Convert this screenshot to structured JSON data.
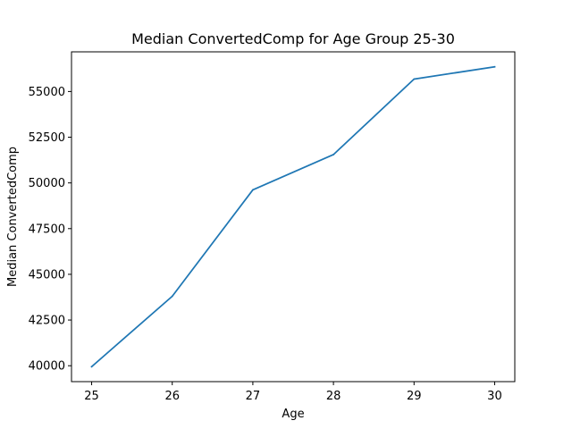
{
  "chart_data": {
    "type": "line",
    "title": "Median ConvertedComp for Age Group 25-30",
    "xlabel": "Age",
    "ylabel": "Median ConvertedComp",
    "x": [
      25,
      26,
      27,
      28,
      29,
      30
    ],
    "series": [
      {
        "values": [
          39950,
          43800,
          49620,
          51550,
          55680,
          56350
        ],
        "color": "#1f77b4"
      }
    ],
    "xticks": [
      25,
      26,
      27,
      28,
      29,
      30
    ],
    "xtick_labels": [
      "25",
      "26",
      "27",
      "28",
      "29",
      "30"
    ],
    "yticks": [
      40000,
      42500,
      45000,
      47500,
      50000,
      52500,
      55000
    ],
    "ytick_labels": [
      "40000",
      "42500",
      "45000",
      "47500",
      "50000",
      "52500",
      "55000"
    ],
    "xlim": [
      24.75,
      30.25
    ],
    "ylim": [
      39130,
      57170
    ],
    "grid": false,
    "legend": "none"
  }
}
